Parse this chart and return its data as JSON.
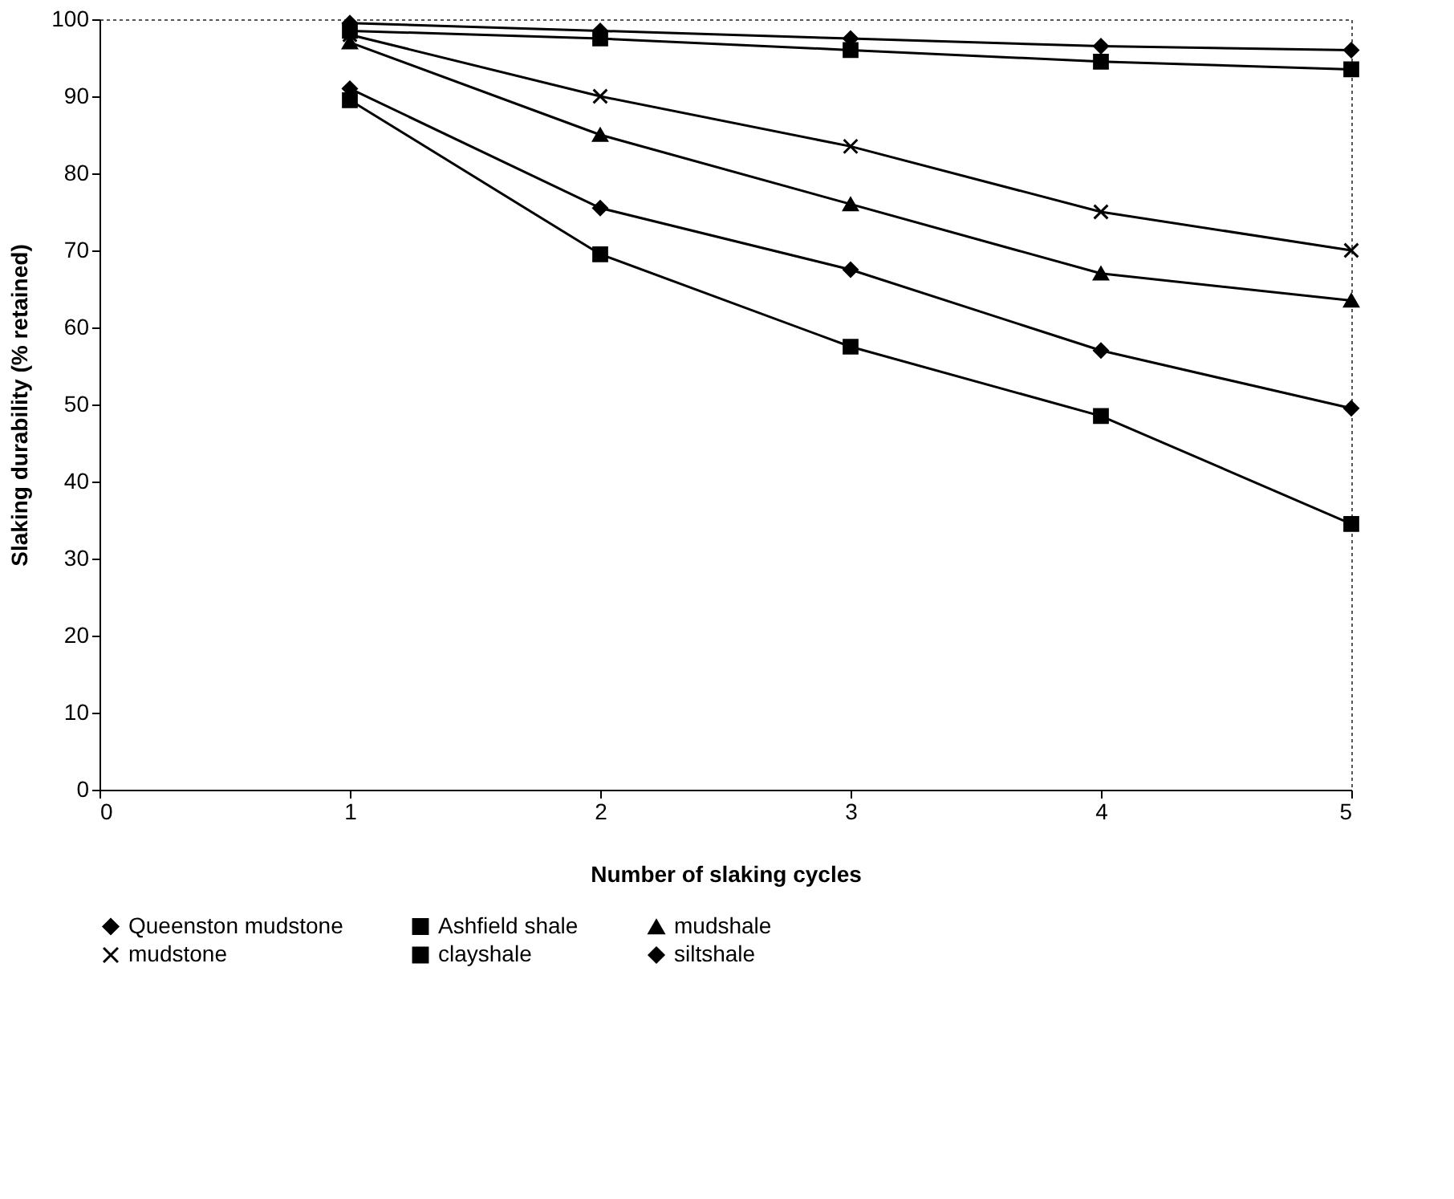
{
  "chart_data": {
    "type": "line",
    "xlabel": "Number of slaking cycles",
    "ylabel": "Slaking durability (% retained)",
    "x": [
      1,
      2,
      3,
      4,
      5
    ],
    "series": [
      {
        "name": "Queenston mudstone",
        "color": "#000000",
        "marker": "diamond",
        "values": [
          91,
          75.5,
          67.5,
          57,
          49.5
        ]
      },
      {
        "name": "Ashfield shale",
        "color": "#000000",
        "marker": "square",
        "values": [
          89.5,
          69.5,
          57.5,
          48.5,
          34.5
        ]
      },
      {
        "name": "mudshale",
        "color": "#000000",
        "marker": "triangle",
        "values": [
          97,
          85,
          76,
          67,
          63.5
        ]
      },
      {
        "name": "mudstone",
        "color": "#000000",
        "marker": "cross",
        "values": [
          98,
          90,
          83.5,
          75,
          70
        ]
      },
      {
        "name": "clayshale",
        "color": "#000000",
        "marker": "square",
        "values": [
          98.5,
          97.5,
          96,
          94.5,
          93.5
        ]
      },
      {
        "name": "siltshale",
        "color": "#000000",
        "marker": "diamond",
        "values": [
          99.5,
          98.5,
          97.5,
          96.5,
          96
        ]
      }
    ],
    "xlim": [
      0,
      5
    ],
    "xticks": [
      0,
      1,
      2,
      3,
      4,
      5
    ],
    "ylim": [
      0,
      100
    ],
    "yticks": [
      0,
      10,
      20,
      30,
      40,
      50,
      60,
      70,
      80,
      90,
      100
    ],
    "grid": false,
    "legend": "bottom",
    "line_style": "solid"
  }
}
